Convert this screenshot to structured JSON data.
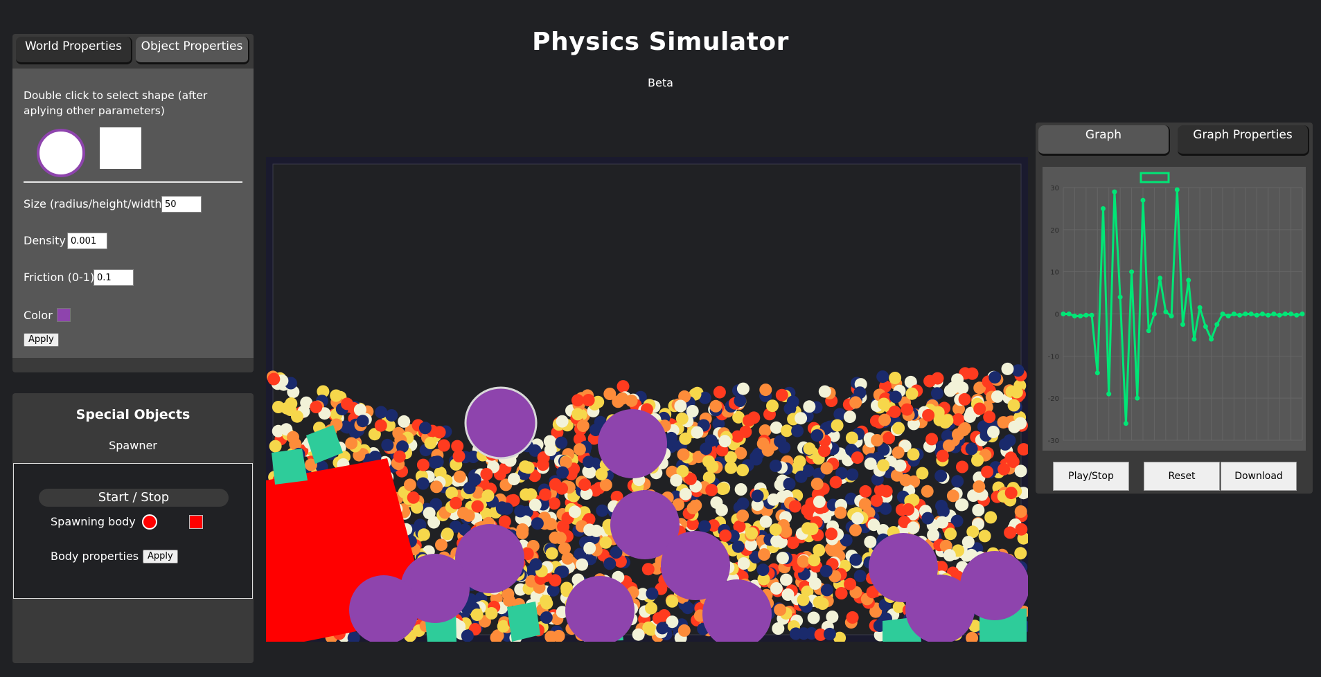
{
  "header": {
    "title": "Physics Simulator",
    "subtitle": "Beta"
  },
  "left_panel": {
    "tabs": [
      {
        "label": "World Properties"
      },
      {
        "label": "Object Properties"
      }
    ],
    "active_tab": "Object Properties",
    "hint": "Double click to select shape (after aplying other parameters)",
    "shapes": [
      "circle-shape-icon",
      "square-shape-icon"
    ],
    "fields": {
      "size": {
        "label": "Size (radius/height/width)",
        "value": "50"
      },
      "density": {
        "label": "Density",
        "value": "0.001"
      },
      "friction": {
        "label": "Friction (0-1)",
        "value": "0.1"
      }
    },
    "color": {
      "label": "Color",
      "value": "#8e44ad"
    },
    "apply_label": "Apply"
  },
  "special_objects": {
    "title": "Special Objects",
    "spawner_label": "Spawner",
    "start_stop_label": "Start / Stop",
    "spawning_body_label": "Spawning body",
    "spawn_color": "#ff0000",
    "body_properties_label": "Body properties",
    "apply_label": "Apply"
  },
  "simulation": {
    "colors": {
      "background": "#1a1a2e",
      "purple": "#8e44ad",
      "red": "#ff0000",
      "teal": "#2ecc9a",
      "ball_palette": [
        "#ff3b1f",
        "#fd8c3a",
        "#f6d74b",
        "#f2f2d8",
        "#1a2a6c"
      ]
    }
  },
  "graph_panel": {
    "tabs": [
      {
        "label": "Graph"
      },
      {
        "label": "Graph Properties"
      }
    ],
    "active_tab": "Graph",
    "buttons": {
      "play_stop": "Play/Stop",
      "reset": "Reset",
      "download": "Download"
    },
    "line_color": "#00e676"
  },
  "chart_data": {
    "type": "line",
    "title": "",
    "legend": {
      "position": "top-center"
    },
    "series": [
      {
        "values": [
          0,
          0,
          -0.5,
          -0.5,
          -0.3,
          -0.3,
          -14,
          25,
          -19,
          29,
          4,
          -26,
          10,
          -20,
          27,
          -4,
          0,
          8.5,
          0.5,
          -0.5,
          29.5,
          -2.5,
          8,
          -6,
          1.5,
          -3,
          -6,
          -2.5,
          0,
          -0.5,
          0,
          -0.3,
          0,
          0,
          -0.3,
          0,
          -0.3,
          0,
          -0.3,
          0,
          0,
          -0.3,
          0
        ]
      }
    ],
    "ylim": [
      -30,
      30
    ],
    "yticks": [
      30,
      20,
      10,
      0,
      -10,
      -20,
      -30
    ],
    "grid": true
  }
}
